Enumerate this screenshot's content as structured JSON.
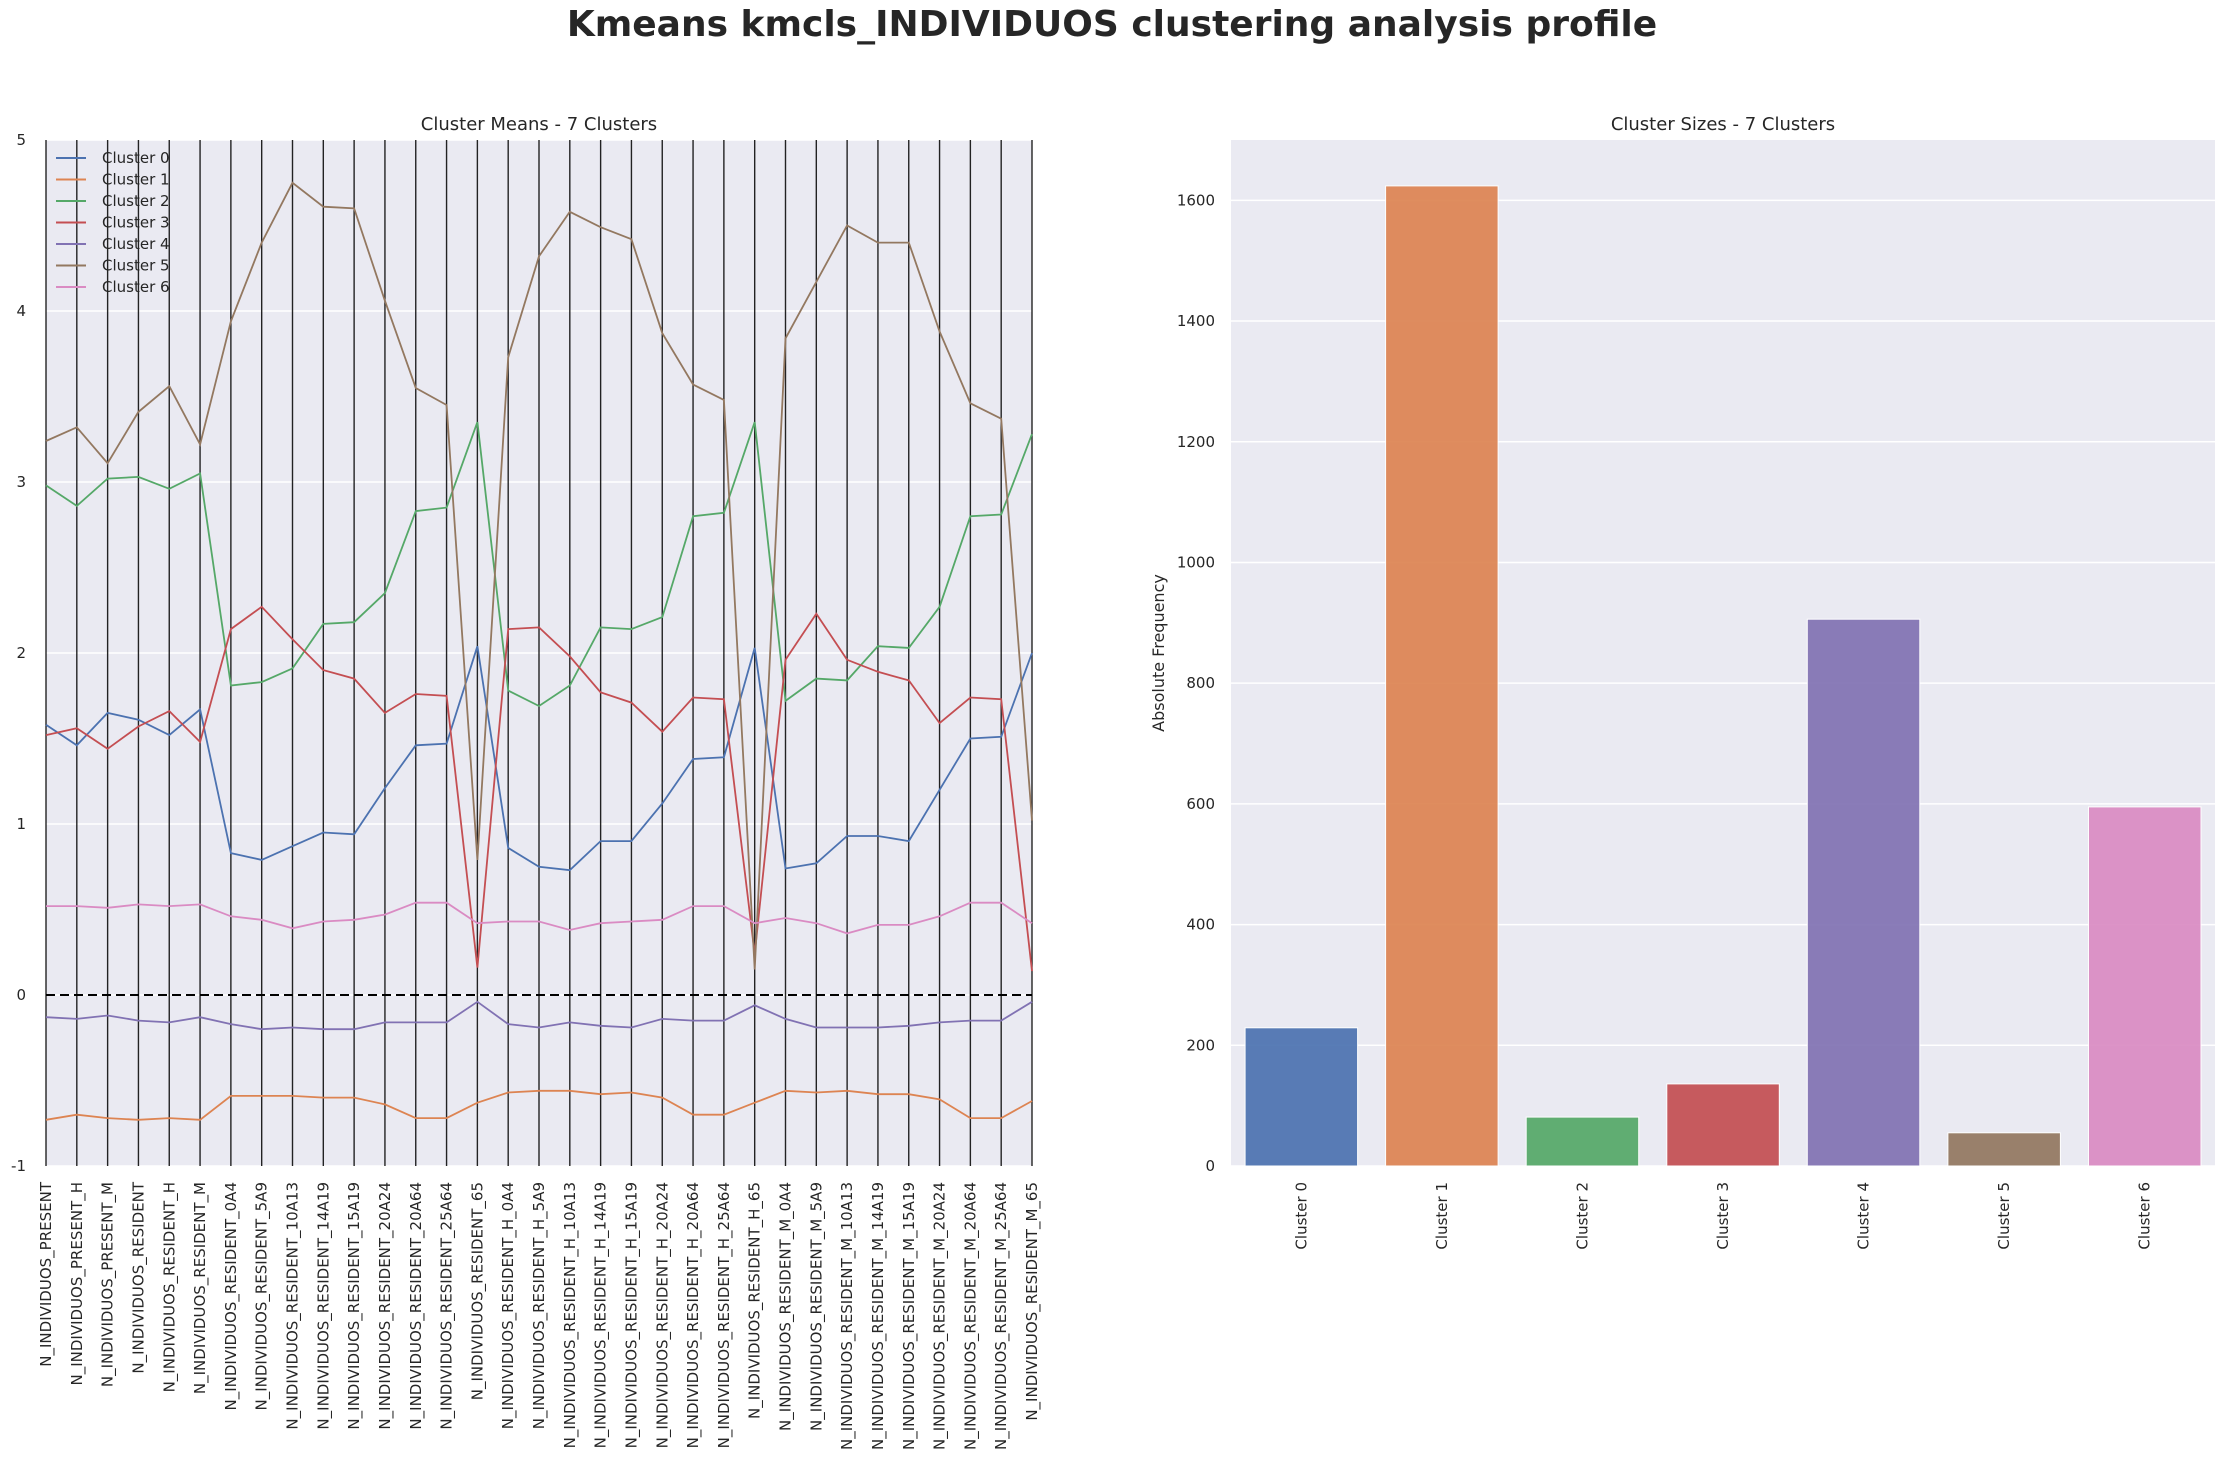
{
  "figure": {
    "suptitle": "Kmeans kmcls_INDIVIDUOS clustering analysis profile",
    "background": "#ffffff",
    "axes_background": "#eaeaf2"
  },
  "chart_data": [
    {
      "type": "line",
      "title": "Cluster Means - 7 Clusters",
      "xlabel": "",
      "ylabel": "",
      "ylim": [
        -1,
        5
      ],
      "yticks": [
        -1,
        0,
        1,
        2,
        3,
        4,
        5
      ],
      "grid": true,
      "vertical_lines_at_each_category": true,
      "zero_reference_line": {
        "y": 0,
        "style": "dashed",
        "color": "#000000"
      },
      "legend_position": "upper-left",
      "categories": [
        "N_INDIVIDUOS_PRESENT",
        "N_INDIVIDUOS_PRESENT_H",
        "N_INDIVIDUOS_PRESENT_M",
        "N_INDIVIDUOS_RESIDENT",
        "N_INDIVIDUOS_RESIDENT_H",
        "N_INDIVIDUOS_RESIDENT_M",
        "N_INDIVIDUOS_RESIDENT_0A4",
        "N_INDIVIDUOS_RESIDENT_5A9",
        "N_INDIVIDUOS_RESIDENT_10A13",
        "N_INDIVIDUOS_RESIDENT_14A19",
        "N_INDIVIDUOS_RESIDENT_15A19",
        "N_INDIVIDUOS_RESIDENT_20A24",
        "N_INDIVIDUOS_RESIDENT_20A64",
        "N_INDIVIDUOS_RESIDENT_25A64",
        "N_INDIVIDUOS_RESIDENT_65",
        "N_INDIVIDUOS_RESIDENT_H_0A4",
        "N_INDIVIDUOS_RESIDENT_H_5A9",
        "N_INDIVIDUOS_RESIDENT_H_10A13",
        "N_INDIVIDUOS_RESIDENT_H_14A19",
        "N_INDIVIDUOS_RESIDENT_H_15A19",
        "N_INDIVIDUOS_RESIDENT_H_20A24",
        "N_INDIVIDUOS_RESIDENT_H_20A64",
        "N_INDIVIDUOS_RESIDENT_H_25A64",
        "N_INDIVIDUOS_RESIDENT_H_65",
        "N_INDIVIDUOS_RESIDENT_M_0A4",
        "N_INDIVIDUOS_RESIDENT_M_5A9",
        "N_INDIVIDUOS_RESIDENT_M_10A13",
        "N_INDIVIDUOS_RESIDENT_M_14A19",
        "N_INDIVIDUOS_RESIDENT_M_15A19",
        "N_INDIVIDUOS_RESIDENT_M_20A24",
        "N_INDIVIDUOS_RESIDENT_M_20A64",
        "N_INDIVIDUOS_RESIDENT_M_25A64",
        "N_INDIVIDUOS_RESIDENT_M_65"
      ],
      "series": [
        {
          "name": "Cluster 0",
          "color": "#4c72b0",
          "values": [
            1.58,
            1.46,
            1.65,
            1.61,
            1.52,
            1.67,
            0.83,
            0.79,
            0.87,
            0.95,
            0.94,
            1.21,
            1.46,
            1.47,
            2.04,
            0.86,
            0.75,
            0.73,
            0.9,
            0.9,
            1.12,
            1.38,
            1.39,
            2.03,
            0.74,
            0.77,
            0.93,
            0.93,
            0.9,
            1.2,
            1.5,
            1.51,
            2.0
          ]
        },
        {
          "name": "Cluster 1",
          "color": "#dd8452",
          "values": [
            -0.73,
            -0.7,
            -0.72,
            -0.73,
            -0.72,
            -0.73,
            -0.59,
            -0.59,
            -0.59,
            -0.6,
            -0.6,
            -0.64,
            -0.72,
            -0.72,
            -0.63,
            -0.57,
            -0.56,
            -0.56,
            -0.58,
            -0.57,
            -0.6,
            -0.7,
            -0.7,
            -0.63,
            -0.56,
            -0.57,
            -0.56,
            -0.58,
            -0.58,
            -0.61,
            -0.72,
            -0.72,
            -0.62
          ]
        },
        {
          "name": "Cluster 2",
          "color": "#55a868",
          "values": [
            2.98,
            2.86,
            3.02,
            3.03,
            2.96,
            3.05,
            1.81,
            1.83,
            1.91,
            2.17,
            2.18,
            2.35,
            2.83,
            2.85,
            3.35,
            1.78,
            1.69,
            1.81,
            2.15,
            2.14,
            2.21,
            2.8,
            2.82,
            3.35,
            1.72,
            1.85,
            1.84,
            2.04,
            2.03,
            2.27,
            2.8,
            2.81,
            3.28
          ]
        },
        {
          "name": "Cluster 3",
          "color": "#c44e52",
          "values": [
            1.52,
            1.56,
            1.44,
            1.57,
            1.66,
            1.48,
            2.14,
            2.27,
            2.08,
            1.9,
            1.85,
            1.65,
            1.76,
            1.75,
            0.16,
            2.14,
            2.15,
            1.98,
            1.77,
            1.71,
            1.54,
            1.74,
            1.73,
            0.24,
            1.96,
            2.23,
            1.96,
            1.89,
            1.84,
            1.59,
            1.74,
            1.73,
            0.14
          ]
        },
        {
          "name": "Cluster 4",
          "color": "#8172b3",
          "values": [
            -0.13,
            -0.14,
            -0.12,
            -0.15,
            -0.16,
            -0.13,
            -0.17,
            -0.2,
            -0.19,
            -0.2,
            -0.2,
            -0.16,
            -0.16,
            -0.16,
            -0.04,
            -0.17,
            -0.19,
            -0.16,
            -0.18,
            -0.19,
            -0.14,
            -0.15,
            -0.15,
            -0.06,
            -0.14,
            -0.19,
            -0.19,
            -0.19,
            -0.18,
            -0.16,
            -0.15,
            -0.15,
            -0.04
          ]
        },
        {
          "name": "Cluster 5",
          "color": "#937860",
          "values": [
            3.24,
            3.32,
            3.11,
            3.41,
            3.56,
            3.22,
            3.94,
            4.4,
            4.75,
            4.61,
            4.6,
            4.06,
            3.55,
            3.45,
            0.79,
            3.73,
            4.32,
            4.58,
            4.49,
            4.42,
            3.87,
            3.57,
            3.48,
            0.15,
            3.84,
            4.17,
            4.5,
            4.4,
            4.4,
            3.88,
            3.46,
            3.37,
            1.02
          ]
        },
        {
          "name": "Cluster 6",
          "color": "#da8bc3",
          "values": [
            0.52,
            0.52,
            0.51,
            0.53,
            0.52,
            0.53,
            0.46,
            0.44,
            0.39,
            0.43,
            0.44,
            0.47,
            0.54,
            0.54,
            0.42,
            0.43,
            0.43,
            0.38,
            0.42,
            0.43,
            0.44,
            0.52,
            0.52,
            0.42,
            0.45,
            0.42,
            0.36,
            0.41,
            0.41,
            0.46,
            0.54,
            0.54,
            0.42
          ]
        }
      ]
    },
    {
      "type": "bar",
      "title": "Cluster Sizes - 7 Clusters",
      "xlabel": "",
      "ylabel": "Absolute Frequency",
      "ylim": [
        0,
        1700
      ],
      "yticks": [
        0,
        200,
        400,
        600,
        800,
        1000,
        1200,
        1400,
        1600
      ],
      "grid": true,
      "categories": [
        "Cluster 0",
        "Cluster 1",
        "Cluster 2",
        "Cluster 3",
        "Cluster 4",
        "Cluster 5",
        "Cluster 6"
      ],
      "values": [
        229,
        1624,
        81,
        136,
        906,
        55,
        595
      ],
      "colors": [
        "#4c72b0",
        "#dd8452",
        "#55a868",
        "#c44e52",
        "#8172b3",
        "#937860",
        "#da8bc3"
      ]
    }
  ]
}
